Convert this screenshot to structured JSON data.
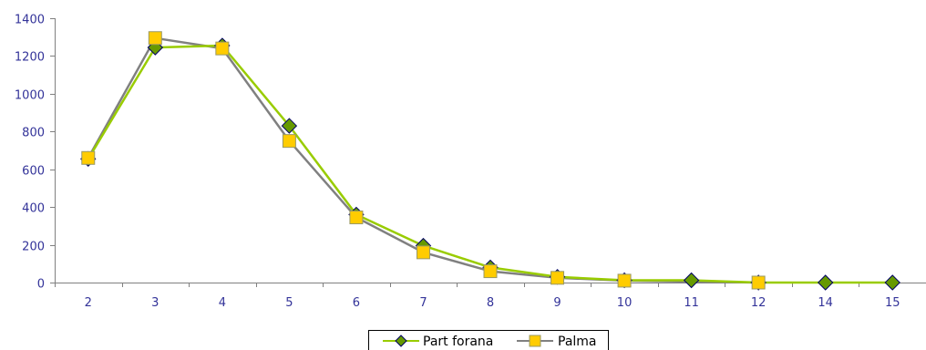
{
  "chart_data": {
    "type": "line",
    "categories": [
      "2",
      "3",
      "4",
      "5",
      "6",
      "7",
      "8",
      "9",
      "10",
      "11",
      "12",
      "14",
      "15"
    ],
    "series": [
      {
        "name": "Part forana",
        "values": [
          655,
          1245,
          1255,
          830,
          360,
          195,
          80,
          30,
          12,
          12,
          0,
          0,
          0
        ],
        "line_color": "#99CC00",
        "marker": "diamond",
        "marker_fill": "#669900",
        "marker_stroke": "#000066"
      },
      {
        "name": "Palma",
        "values": [
          660,
          1295,
          1240,
          750,
          345,
          160,
          60,
          25,
          10,
          null,
          0,
          null,
          null
        ],
        "line_color": "#808080",
        "marker": "square",
        "marker_fill": "#FFCC00",
        "marker_stroke": "#999966"
      }
    ],
    "yticks": [
      "0",
      "200",
      "400",
      "600",
      "800",
      "1000",
      "1200",
      "1400"
    ],
    "ylim": [
      0,
      1400
    ],
    "grid": false,
    "legend_position": "bottom-center",
    "axis_color": "#808080",
    "tick_label_color": "#333399"
  }
}
